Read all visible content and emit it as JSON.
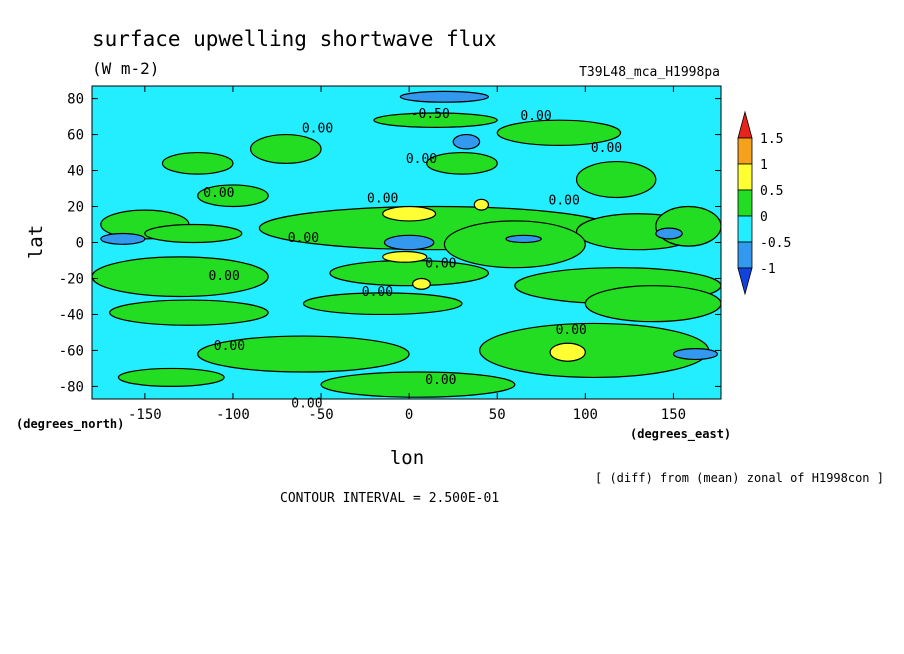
{
  "chart_data": {
    "type": "heatmap",
    "title": "surface upwelling shortwave flux",
    "units": "(W m-2)",
    "run_label": "T39L48_mca_H1998pa",
    "xlabel": "lon",
    "ylabel": "lat",
    "x_units": "(degrees_east)",
    "y_units": "(degrees_north)",
    "note": "[ (diff) from (mean) zonal of H1998con ]",
    "contour_interval": "CONTOUR INTERVAL = 2.500E-01",
    "xlim": [
      -180,
      177
    ],
    "ylim": [
      -87,
      87
    ],
    "x_ticks": [
      -150,
      -100,
      -50,
      0,
      50,
      100,
      150
    ],
    "y_ticks": [
      80,
      60,
      40,
      20,
      0,
      -20,
      -40,
      -60,
      -80
    ],
    "colorbar": {
      "labels": [
        "1.5",
        "1",
        "0.5",
        "0",
        "-0.5",
        "-1"
      ],
      "bins": [
        {
          "from": 1.5,
          "to": null,
          "color": "#e8221c"
        },
        {
          "from": 1.0,
          "to": 1.5,
          "color": "#f5a11c"
        },
        {
          "from": 0.5,
          "to": 1.0,
          "color": "#ffff33"
        },
        {
          "from": 0.0,
          "to": 0.5,
          "color": "#22dd22"
        },
        {
          "from": -0.5,
          "to": 0.0,
          "color": "#22eeff"
        },
        {
          "from": -1.0,
          "to": -0.5,
          "color": "#3399ee"
        },
        {
          "from": null,
          "to": -1.0,
          "color": "#1144dd"
        }
      ]
    },
    "contour_labels": [
      {
        "text": "0.00",
        "lon": -52,
        "lat": 64
      },
      {
        "text": "-0.50",
        "lon": 12,
        "lat": 72
      },
      {
        "text": "0.00",
        "lon": 72,
        "lat": 71
      },
      {
        "text": "0.00",
        "lon": 112,
        "lat": 53
      },
      {
        "text": "0.00",
        "lon": 7,
        "lat": 47
      },
      {
        "text": "0.00",
        "lon": -108,
        "lat": 28
      },
      {
        "text": "0.00",
        "lon": -15,
        "lat": 25
      },
      {
        "text": "0.00",
        "lon": 88,
        "lat": 24
      },
      {
        "text": "0.00",
        "lon": -60,
        "lat": 3
      },
      {
        "text": "0.00",
        "lon": 18,
        "lat": -11
      },
      {
        "text": "0.00",
        "lon": -105,
        "lat": -18
      },
      {
        "text": "0.00",
        "lon": -18,
        "lat": -27
      },
      {
        "text": "0.00",
        "lon": 92,
        "lat": -48
      },
      {
        "text": "0.00",
        "lon": -102,
        "lat": -57
      },
      {
        "text": "0.00",
        "lon": 18,
        "lat": -76
      },
      {
        "text": "0.00",
        "lon": -58,
        "lat": -89
      }
    ],
    "regions": [
      {
        "value": 0.25,
        "lon": -175,
        "lat": 18,
        "w": 50,
        "h": 16
      },
      {
        "value": 0.25,
        "lon": -150,
        "lat": 10,
        "w": 55,
        "h": 10
      },
      {
        "value": 0.25,
        "lon": -85,
        "lat": 20,
        "w": 200,
        "h": 24
      },
      {
        "value": 0.25,
        "lon": 95,
        "lat": 16,
        "w": 70,
        "h": 20
      },
      {
        "value": 0.25,
        "lon": 140,
        "lat": 20,
        "w": 37,
        "h": 22
      },
      {
        "value": 0.25,
        "lon": -180,
        "lat": -8,
        "w": 100,
        "h": 22
      },
      {
        "value": 0.25,
        "lon": -45,
        "lat": -10,
        "w": 90,
        "h": 14
      },
      {
        "value": 0.25,
        "lon": 60,
        "lat": -14,
        "w": 117,
        "h": 20
      },
      {
        "value": 0.25,
        "lon": 20,
        "lat": 12,
        "w": 80,
        "h": 26
      },
      {
        "value": 0.25,
        "lon": -170,
        "lat": -32,
        "w": 90,
        "h": 14
      },
      {
        "value": 0.25,
        "lon": -60,
        "lat": -28,
        "w": 90,
        "h": 12
      },
      {
        "value": 0.25,
        "lon": 100,
        "lat": -24,
        "w": 77,
        "h": 20
      },
      {
        "value": 0.25,
        "lon": -120,
        "lat": -52,
        "w": 120,
        "h": 20
      },
      {
        "value": 0.25,
        "lon": 40,
        "lat": -45,
        "w": 130,
        "h": 30
      },
      {
        "value": 0.25,
        "lon": -165,
        "lat": -70,
        "w": 60,
        "h": 10
      },
      {
        "value": 0.25,
        "lon": -50,
        "lat": -72,
        "w": 110,
        "h": 14
      },
      {
        "value": 0.25,
        "lon": -20,
        "lat": 72,
        "w": 70,
        "h": 8
      },
      {
        "value": 0.25,
        "lon": 50,
        "lat": 68,
        "w": 70,
        "h": 14
      },
      {
        "value": 0.25,
        "lon": 95,
        "lat": 45,
        "w": 45,
        "h": 20
      },
      {
        "value": 0.25,
        "lon": -90,
        "lat": 60,
        "w": 40,
        "h": 16
      },
      {
        "value": 0.25,
        "lon": -140,
        "lat": 50,
        "w": 40,
        "h": 12
      },
      {
        "value": 0.25,
        "lon": 10,
        "lat": 50,
        "w": 40,
        "h": 12
      },
      {
        "value": 0.25,
        "lon": -120,
        "lat": 32,
        "w": 40,
        "h": 12
      },
      {
        "value": 0.75,
        "lon": -15,
        "lat": 20,
        "w": 30,
        "h": 8
      },
      {
        "value": 0.75,
        "lon": -15,
        "lat": -5,
        "w": 25,
        "h": 6
      },
      {
        "value": 0.75,
        "lon": 37,
        "lat": 24,
        "w": 8,
        "h": 6
      },
      {
        "value": 0.75,
        "lon": 80,
        "lat": -56,
        "w": 20,
        "h": 10
      },
      {
        "value": 0.75,
        "lon": 2,
        "lat": -20,
        "w": 10,
        "h": 6
      },
      {
        "value": -0.75,
        "lon": -14,
        "lat": 4,
        "w": 28,
        "h": 8
      },
      {
        "value": -0.75,
        "lon": -5,
        "lat": 84,
        "w": 50,
        "h": 6
      },
      {
        "value": -0.75,
        "lon": 25,
        "lat": 60,
        "w": 15,
        "h": 8
      },
      {
        "value": -0.75,
        "lon": -175,
        "lat": 5,
        "w": 25,
        "h": 6
      },
      {
        "value": -0.75,
        "lon": 55,
        "lat": 4,
        "w": 20,
        "h": 4
      },
      {
        "value": -0.75,
        "lon": 150,
        "lat": -59,
        "w": 25,
        "h": 6
      },
      {
        "value": -0.75,
        "lon": 140,
        "lat": 8,
        "w": 15,
        "h": 6
      }
    ]
  }
}
